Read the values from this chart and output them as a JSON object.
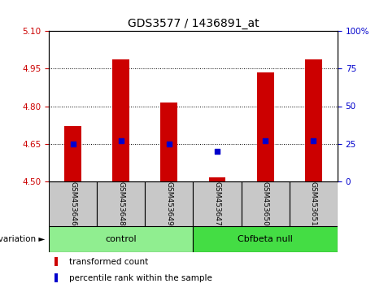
{
  "title": "GDS3577 / 1436891_at",
  "samples": [
    "GSM453646",
    "GSM453648",
    "GSM453649",
    "GSM453647",
    "GSM453650",
    "GSM453651"
  ],
  "red_values": [
    4.72,
    4.985,
    4.815,
    4.515,
    4.935,
    4.985
  ],
  "blue_values": [
    25,
    27,
    25,
    20,
    27,
    27
  ],
  "bar_bottom": 4.5,
  "ylim_left": [
    4.5,
    5.1
  ],
  "ylim_right": [
    0,
    100
  ],
  "yticks_left": [
    4.5,
    4.65,
    4.8,
    4.95,
    5.1
  ],
  "yticks_right": [
    0,
    25,
    50,
    75,
    100
  ],
  "ytick_labels_right": [
    "0",
    "25",
    "50",
    "75",
    "100%"
  ],
  "grid_values": [
    4.65,
    4.8,
    4.95
  ],
  "groups": [
    {
      "label": "control",
      "start": 0,
      "end": 3,
      "color": "#90EE90"
    },
    {
      "label": "Cbfbeta null",
      "start": 3,
      "end": 6,
      "color": "#44DD44"
    }
  ],
  "bar_color": "#CC0000",
  "blue_color": "#0000CC",
  "bar_width": 0.35,
  "sample_box_color": "#C8C8C8",
  "legend_red_label": "transformed count",
  "legend_blue_label": "percentile rank within the sample",
  "title_fontsize": 10,
  "tick_fontsize": 7.5,
  "sample_fontsize": 6.5,
  "group_fontsize": 8,
  "legend_fontsize": 7.5
}
